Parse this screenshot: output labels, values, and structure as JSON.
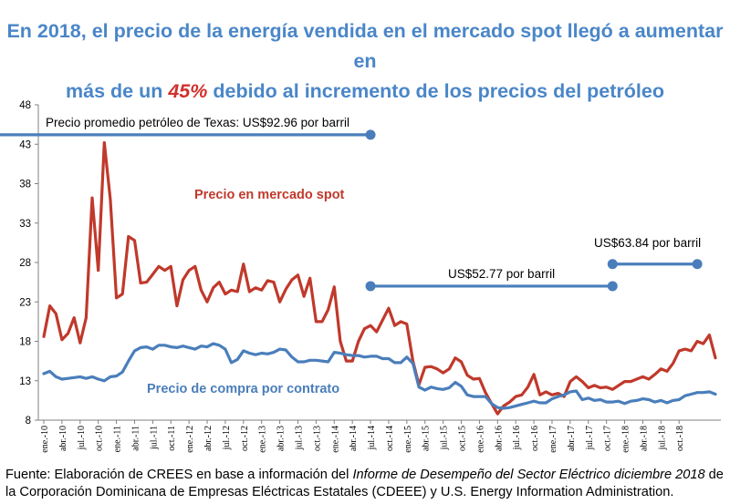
{
  "title": {
    "line1": "En 2018, el precio de la energía vendida en el mercado spot llegó a aumentar en",
    "line2_pre": "más de un ",
    "line2_highlight": "45%",
    "line2_post": " debido al incremento de los precios del petróleo"
  },
  "caption": {
    "part1": "Fuente: Elaboración de CREES en base a información del ",
    "italic": "Informe de Desempeño del Sector Eléctrico diciembre 2018",
    "part2": " de la Corporación Dominicana de Empresas Eléctricas Estatales (CDEEE) y U.S. Energy Information Administration."
  },
  "colors": {
    "spot": "#c0392b",
    "contract": "#4a7ebb",
    "oil": "#4a7ebb",
    "title": "#4a86c8",
    "highlight": "#d0312d"
  },
  "chart_data": {
    "type": "line",
    "ylim": [
      8,
      48
    ],
    "yticks": [
      8,
      13,
      18,
      23,
      28,
      33,
      38,
      43,
      48
    ],
    "xlabels": [
      "ene.-10",
      "abr.-10",
      "jul.-10",
      "oct.-10",
      "ene.-11",
      "abr.-11",
      "jul.-11",
      "oct.-11",
      "ene.-12",
      "abr.-12",
      "jul.-12",
      "oct.-12",
      "ene.-13",
      "abr.-13",
      "jul.-13",
      "oct.-13",
      "ene.-14",
      "abr.-14",
      "jul.-14",
      "oct.-14",
      "ene.-15",
      "abr.-15",
      "jul.-15",
      "oct.-15",
      "ene.-16",
      "abr.-16",
      "jul.-16",
      "oct.-16",
      "ene.-17",
      "abr.-17",
      "jul.-17",
      "oct.-17",
      "ene.-18",
      "abr.-18",
      "jul.-18",
      "oct.-18"
    ],
    "series": [
      {
        "name": "Precio en mercado spot",
        "label": "Precio en mercado spot",
        "values": [
          18.6,
          22.5,
          21.5,
          18.2,
          19.0,
          21.0,
          17.8,
          21.0,
          36.2,
          27.0,
          43.2,
          36.0,
          23.5,
          24.0,
          31.3,
          30.8,
          25.4,
          25.5,
          26.5,
          27.5,
          27.0,
          27.5,
          22.5,
          25.8,
          27.0,
          27.5,
          24.5,
          23.0,
          24.8,
          25.5,
          24.0,
          24.5,
          24.3,
          27.8,
          24.3,
          24.8,
          24.5,
          25.7,
          25.5,
          23.0,
          24.6,
          25.8,
          26.4,
          23.7,
          26.0,
          20.5,
          20.5,
          22.0,
          24.9,
          18.0,
          15.5,
          15.5,
          18.0,
          19.6,
          20.0,
          19.2,
          20.7,
          22.2,
          20.0,
          20.5,
          20.2,
          15.5,
          12.5,
          14.7,
          14.8,
          14.5,
          14.0,
          14.5,
          15.9,
          15.4,
          13.7,
          13.2,
          13.3,
          11.5,
          10.1,
          8.8,
          9.8,
          10.3,
          11.0,
          11.2,
          12.2,
          13.8,
          11.2,
          11.6,
          11.2,
          11.4,
          11.0,
          12.9,
          13.5,
          12.9,
          12.1,
          12.4,
          12.1,
          12.2,
          11.9,
          12.4,
          12.9,
          12.9,
          13.2,
          13.5,
          13.2,
          13.8,
          14.5,
          14.2,
          15.2,
          16.8,
          17.0,
          16.8,
          18.0,
          17.7,
          18.8,
          15.9
        ]
      },
      {
        "name": "Precio de compra por contrato",
        "label": "Precio de compra por contrato",
        "values": [
          13.9,
          14.2,
          13.5,
          13.2,
          13.3,
          13.4,
          13.5,
          13.3,
          13.5,
          13.2,
          13.0,
          13.5,
          13.6,
          14.1,
          15.5,
          16.8,
          17.2,
          17.3,
          17.0,
          17.5,
          17.5,
          17.3,
          17.2,
          17.4,
          17.2,
          17.0,
          17.4,
          17.3,
          17.7,
          17.5,
          17.0,
          15.3,
          15.7,
          16.8,
          16.5,
          16.3,
          16.5,
          16.4,
          16.6,
          17.0,
          16.9,
          16.0,
          15.4,
          15.4,
          15.6,
          15.6,
          15.5,
          15.4,
          16.6,
          16.5,
          16.3,
          16.2,
          16.2,
          16.0,
          16.1,
          16.1,
          15.8,
          15.8,
          15.3,
          15.3,
          16.0,
          15.2,
          12.2,
          11.8,
          12.2,
          12.0,
          11.9,
          12.1,
          12.8,
          12.3,
          11.2,
          11.0,
          11.0,
          11.0,
          10.1,
          9.6,
          9.5,
          9.6,
          9.8,
          10.0,
          10.2,
          10.4,
          10.2,
          10.2,
          10.7,
          11.0,
          11.2,
          11.6,
          11.7,
          10.6,
          10.8,
          10.5,
          10.6,
          10.3,
          10.3,
          10.4,
          10.1,
          10.4,
          10.5,
          10.7,
          10.6,
          10.3,
          10.5,
          10.2,
          10.5,
          10.6,
          11.1,
          11.3,
          11.5,
          11.5,
          11.6,
          11.3
        ]
      }
    ],
    "oil_segments": [
      {
        "label_prefix": "Precio promedio petróleo de Texas: ",
        "label_value": "US$92.96 por barril",
        "value": 44.2,
        "start": 0,
        "end": 54
      },
      {
        "label_prefix": "",
        "label_value": "US$52.77 por barril",
        "value": 25.0,
        "start": 54,
        "end": 94
      },
      {
        "label_prefix": "",
        "label_value": "US$63.84 por barril",
        "value": 27.8,
        "start": 94,
        "end": 108
      }
    ]
  }
}
